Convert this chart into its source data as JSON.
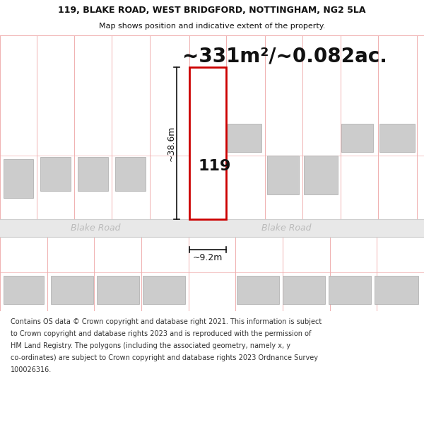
{
  "title_line1": "119, BLAKE ROAD, WEST BRIDGFORD, NOTTINGHAM, NG2 5LA",
  "title_line2": "Map shows position and indicative extent of the property.",
  "area_text": "~331m²/~0.082ac.",
  "dim_height": "~38.6m",
  "dim_width": "~9.2m",
  "label_number": "119",
  "road_name": "Blake Road",
  "footer_lines": [
    "Contains OS data © Crown copyright and database right 2021. This information is subject",
    "to Crown copyright and database rights 2023 and is reproduced with the permission of",
    "HM Land Registry. The polygons (including the associated geometry, namely x, y",
    "co-ordinates) are subject to Crown copyright and database rights 2023 Ordnance Survey",
    "100026316."
  ],
  "bg_color": "#ffffff",
  "map_bg": "#fdf5f5",
  "grid_color": "#f0b0b0",
  "road_fill": "#e8e8e8",
  "road_border": "#cccccc",
  "building_fill": "#cccccc",
  "building_edge": "#aaaaaa",
  "highlight_fill": "#ffffff",
  "highlight_edge": "#cc0000",
  "dim_color": "#111111",
  "road_text_color": "#bbbbbb",
  "title_color": "#111111",
  "footer_color": "#333333",
  "area_fontsize": 20,
  "label_fontsize": 16,
  "dim_fontsize": 9,
  "road_fontsize": 9,
  "title1_fontsize": 9,
  "title2_fontsize": 8,
  "footer_fontsize": 7
}
